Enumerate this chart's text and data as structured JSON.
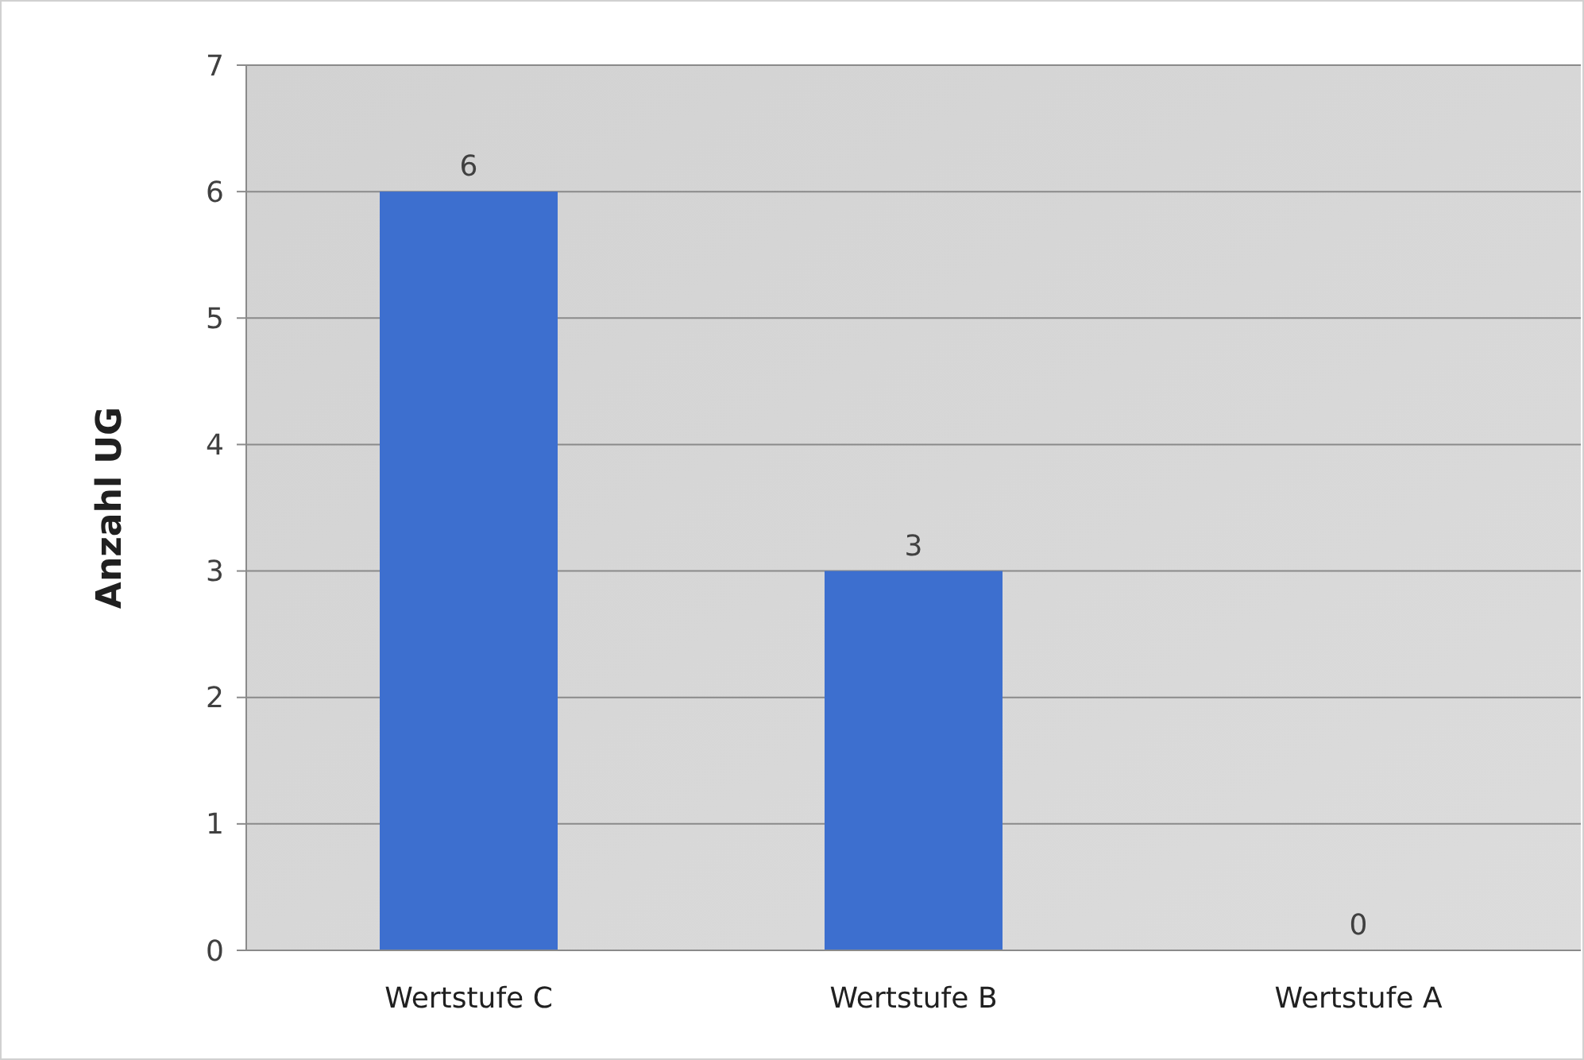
{
  "chart_data": {
    "type": "bar",
    "ylabel": "Anzahl UG",
    "categories": [
      "Wertstufe C",
      "Wertstufe B",
      "Wertstufe A"
    ],
    "values": [
      6,
      3,
      0
    ],
    "color": "#3d6fcf",
    "ylim": [
      0,
      7
    ],
    "yticks": [
      0,
      1,
      2,
      3,
      4,
      5,
      6,
      7
    ],
    "grid": "y",
    "data_labels": true
  }
}
